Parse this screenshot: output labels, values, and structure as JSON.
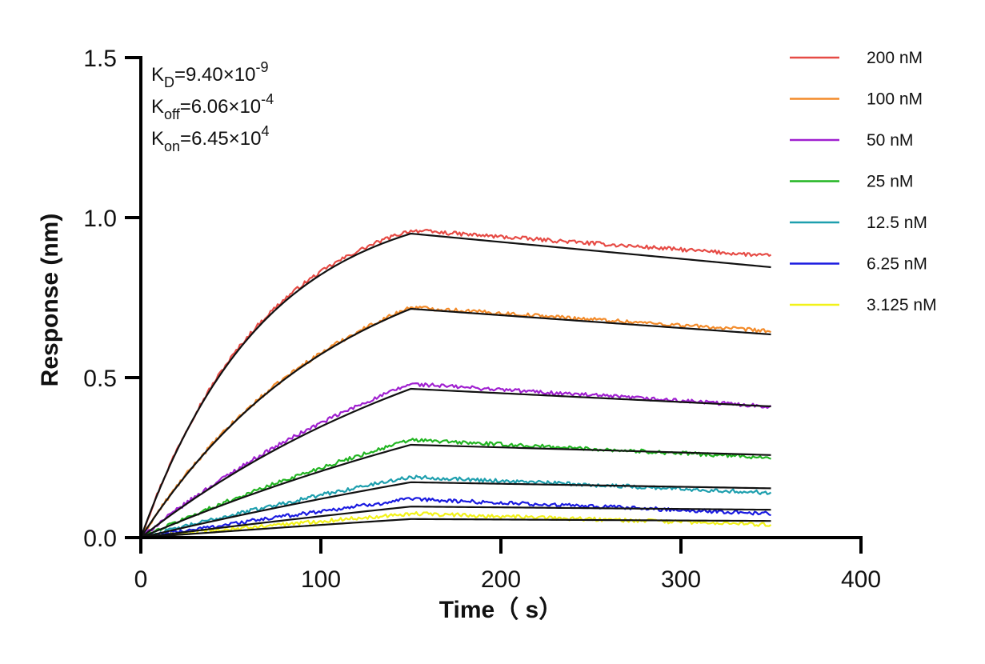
{
  "chart_data": {
    "type": "line",
    "xlabel": "Time（ s）",
    "ylabel": "Response (nm)",
    "xlim": [
      0,
      400
    ],
    "ylim": [
      0,
      1.5
    ],
    "xticks": [
      "0",
      "100",
      "200",
      "300",
      "400"
    ],
    "yticks": [
      "0.0",
      "0.5",
      "1.0",
      "1.5"
    ],
    "association_end": 150,
    "time_end": 350,
    "kinetics": {
      "kd": {
        "base": "K",
        "sub": "D",
        "value": "=9.40×10",
        "exp": "-9"
      },
      "koff": {
        "base": "K",
        "sub": "off",
        "value": "=6.06×10",
        "exp": "-4"
      },
      "kon": {
        "base": "K",
        "sub": "on",
        "value": "=6.45×10",
        "exp": "4"
      }
    },
    "legend_position": "right",
    "fit_color": "#111111",
    "series": [
      {
        "name": "200 nM",
        "color": "#e64b45",
        "peak": 0.96,
        "end": 0.88,
        "fit_peak": 0.95,
        "fit_end": 0.845,
        "curvature": 2.2
      },
      {
        "name": "100 nM",
        "color": "#f38b2a",
        "peak": 0.72,
        "end": 0.645,
        "fit_peak": 0.715,
        "fit_end": 0.635,
        "curvature": 1.35
      },
      {
        "name": "50 nM",
        "color": "#a020d0",
        "peak": 0.48,
        "end": 0.41,
        "fit_peak": 0.465,
        "fit_end": 0.41,
        "curvature": 0.75
      },
      {
        "name": "25 nM",
        "color": "#22b522",
        "peak": 0.305,
        "end": 0.25,
        "fit_peak": 0.29,
        "fit_end": 0.258,
        "curvature": 0.45
      },
      {
        "name": "12.5 nM",
        "color": "#1e9fae",
        "peak": 0.19,
        "end": 0.14,
        "fit_peak": 0.173,
        "fit_end": 0.154,
        "curvature": 0.3
      },
      {
        "name": "6.25 nM",
        "color": "#1a1ae0",
        "peak": 0.12,
        "end": 0.075,
        "fit_peak": 0.097,
        "fit_end": 0.087,
        "curvature": 0.2
      },
      {
        "name": "3.125 nM",
        "color": "#f2f21a",
        "peak": 0.075,
        "end": 0.04,
        "fit_peak": 0.058,
        "fit_end": 0.052,
        "curvature": 0.15
      }
    ]
  }
}
